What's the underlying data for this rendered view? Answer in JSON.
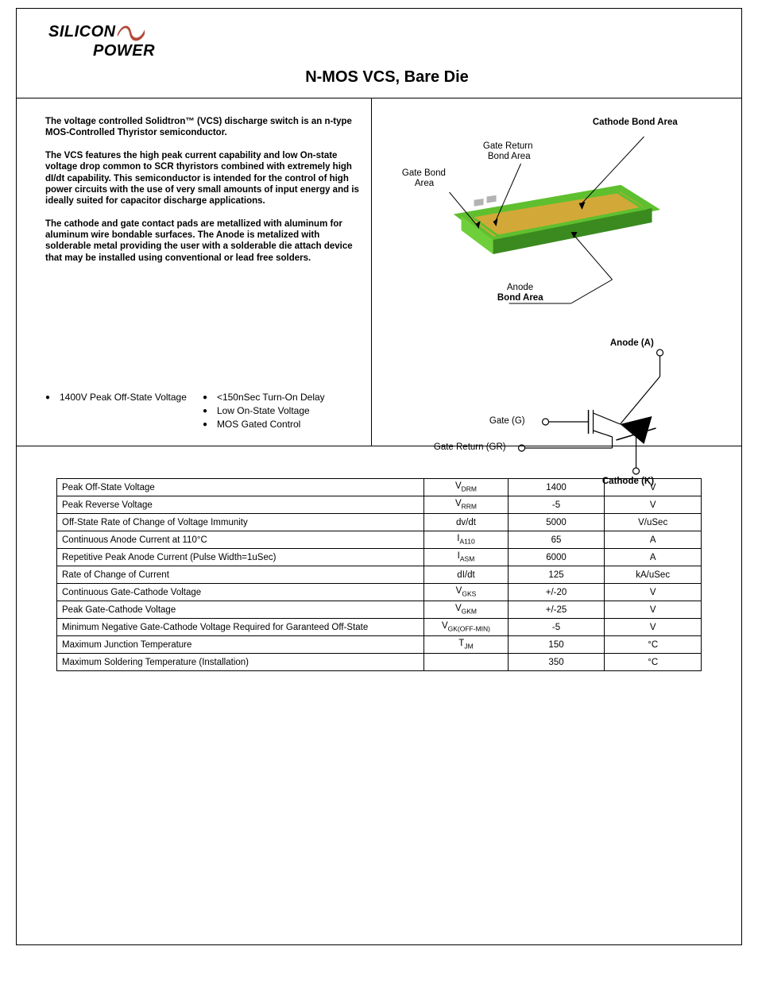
{
  "logo": {
    "line1": "SILICON",
    "line2": "POWER",
    "swoosh_fill": "#b24a3a",
    "text_color": "#000000"
  },
  "title": "N-MOS VCS, Bare Die",
  "paragraphs": [
    "The voltage controlled Solidtron™ (VCS) discharge switch is an n-type MOS-Controlled Thyristor semiconductor.",
    "The VCS features the high peak current capability and low On-state voltage drop common to SCR thyristors combined with extremely high dI/dt capability.  This semiconductor is intended for the control of high power circuits with the use of very small amounts of input energy and is ideally suited for capacitor discharge applications.",
    "The cathode and gate contact pads are metallized with aluminum for aluminum wire bondable surfaces.   The Anode is metalized with solderable metal providing  the user with a solderable die attach device that may be installed using conventional or lead free solders."
  ],
  "features_left": [
    "1400V Peak Off-State Voltage"
  ],
  "features_right": [
    "<150nSec Turn-On Delay",
    "Low On-State Voltage",
    "MOS Gated Control"
  ],
  "die_labels": {
    "cathode_bond": "Cathode Bond Area",
    "gate_return_bond_l1": "Gate Return",
    "gate_return_bond_l2": "Bond Area",
    "gate_bond_l1": "Gate Bond",
    "gate_bond_l2": "Area",
    "anode_l1": "Anode",
    "anode_l2": "Bond Area"
  },
  "die_colors": {
    "top_face": "#d2a938",
    "top_border": "#5fbf2f",
    "side_light": "#6fcf3a",
    "side_dark": "#3a8a1f",
    "pad_small": "#b3b3b3"
  },
  "schem_labels": {
    "anode": "Anode (A)",
    "gate": "Gate (G)",
    "gate_return": "Gate Return (GR)",
    "cathode": "Cathode (K)"
  },
  "spec_rows": [
    {
      "param": "Peak Off-State Voltage",
      "sym": "V",
      "sub": "DRM",
      "val": "1400",
      "unit": "V"
    },
    {
      "param": "Peak Reverse Voltage",
      "sym": "V",
      "sub": "RRM",
      "val": "-5",
      "unit": "V"
    },
    {
      "param": "Off-State Rate of Change of Voltage Immunity",
      "sym": "dv/dt",
      "sub": "",
      "val": "5000",
      "unit": "V/uSec"
    },
    {
      "param": "Continuous Anode Current at 110°C",
      "sym": "I",
      "sub": "A110",
      "val": "65",
      "unit": "A"
    },
    {
      "param": "Repetitive Peak Anode Current (Pulse Width=1uSec)",
      "sym": "I",
      "sub": "ASM",
      "val": "6000",
      "unit": "A"
    },
    {
      "param": "Rate of Change of Current",
      "sym": "dI/dt",
      "sub": "",
      "val": "125",
      "unit": "kA/uSec"
    },
    {
      "param": "Continuous Gate-Cathode Voltage",
      "sym": "V",
      "sub": "GKS",
      "val": "+/-20",
      "unit": "V"
    },
    {
      "param": "Peak Gate-Cathode Voltage",
      "sym": "V",
      "sub": "GKM",
      "val": "+/-25",
      "unit": "V"
    },
    {
      "param": "Minimum Negative Gate-Cathode Voltage Required for Garanteed Off-State",
      "sym": "V",
      "sub": "GK(OFF-MIN)",
      "val": "-5",
      "unit": "V"
    },
    {
      "param": "Maximum Junction Temperature",
      "sym": "T",
      "sub": "JM",
      "val": "150",
      "unit": "°C"
    },
    {
      "param": "Maximum Soldering Temperature (Installation)",
      "sym": "",
      "sub": "",
      "val": "350",
      "unit": "°C"
    }
  ]
}
